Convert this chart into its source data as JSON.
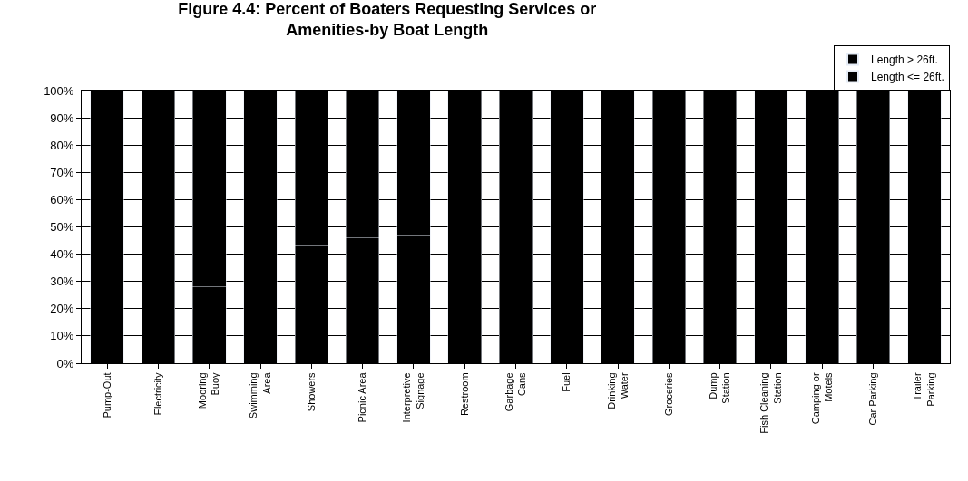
{
  "chart_data": {
    "type": "bar",
    "title": "Figure 4.4: Percent of Boaters Requesting Services or\nAmenities-by Boat Length",
    "categories": [
      "Pump-Out",
      "Electricity",
      "Mooring\nBuoy",
      "Swimming\nArea",
      "Showers",
      "Picnic Area",
      "Interpretive\nSignage",
      "Restroom",
      "Garbage\nCans",
      "Fuel",
      "Drinking\nWater",
      "Groceries",
      "Dump\nStation",
      "Fish Cleaning\nStation",
      "Camping or\nMotels",
      "Car Parking",
      "Trailer\nParking"
    ],
    "stacked": true,
    "series": [
      {
        "name": "Length <= 26ft.",
        "color": "#000000",
        "values": [
          22,
          null,
          28,
          36,
          43,
          46,
          47,
          null,
          null,
          null,
          null,
          null,
          null,
          null,
          null,
          null,
          null
        ]
      },
      {
        "name": "Length > 26ft.",
        "color": "#000000",
        "values": [
          78,
          100,
          72,
          64,
          57,
          54,
          53,
          100,
          100,
          100,
          100,
          100,
          100,
          100,
          100,
          100,
          100
        ]
      }
    ],
    "ylim": [
      0,
      100
    ],
    "yticks": [
      {
        "value": 0,
        "label": "0%"
      },
      {
        "value": 10,
        "label": "10%"
      },
      {
        "value": 20,
        "label": "20%"
      },
      {
        "value": 30,
        "label": "30%"
      },
      {
        "value": 40,
        "label": "40%"
      },
      {
        "value": 50,
        "label": "50%"
      },
      {
        "value": 60,
        "label": "60%"
      },
      {
        "value": 70,
        "label": "70%"
      },
      {
        "value": 80,
        "label": "80%"
      },
      {
        "value": 90,
        "label": "90%"
      },
      {
        "value": 100,
        "label": "100%"
      }
    ],
    "grid": "y",
    "legend": "top right"
  }
}
